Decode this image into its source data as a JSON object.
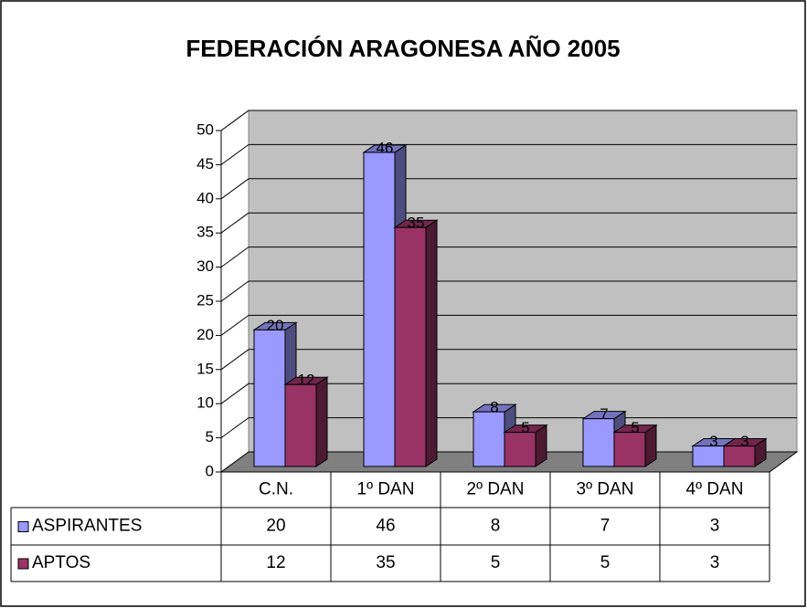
{
  "chart_data": {
    "type": "bar",
    "title": "FEDERACIÓN ARAGONESA AÑO 2005",
    "categories": [
      "C.N.",
      "1º DAN",
      "2º DAN",
      "3º DAN",
      "4º DAN"
    ],
    "series": [
      {
        "name": "ASPIRANTES",
        "color": "#9999ff",
        "values": [
          20,
          46,
          8,
          7,
          3
        ]
      },
      {
        "name": "APTOS",
        "color": "#993366",
        "values": [
          12,
          35,
          5,
          5,
          3
        ]
      }
    ],
    "ylim": [
      0,
      50
    ],
    "yticks": [
      0,
      5,
      10,
      15,
      20,
      25,
      30,
      35,
      40,
      45,
      50
    ],
    "grid": true,
    "data_table": true
  }
}
